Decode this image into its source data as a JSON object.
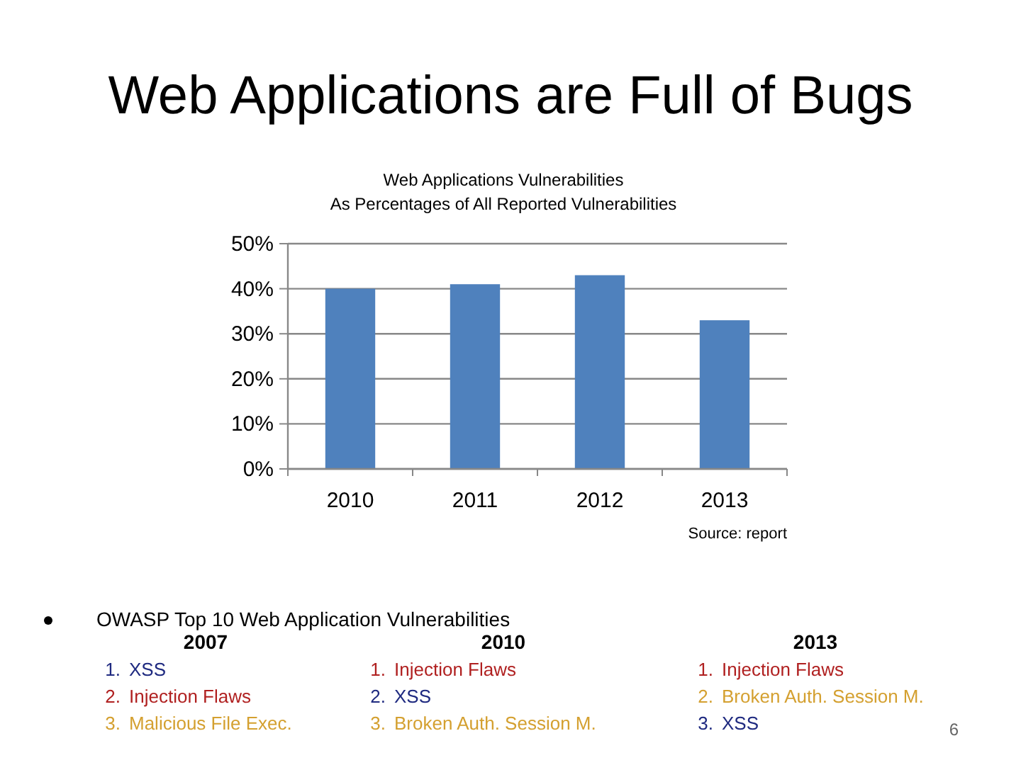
{
  "chart_data": {
    "type": "bar",
    "title": "Web Applications are Full of Bugs",
    "subtitle": "Web Applications Vulnerabilities\nAs Percentages of All Reported Vulnerabilities",
    "categories": [
      "2010",
      "2011",
      "2012",
      "2013"
    ],
    "values": [
      40,
      41,
      43,
      33
    ],
    "color": "#4f81bd",
    "ylim": [
      0,
      50
    ],
    "yticks": [
      {
        "value": 0,
        "label": "0%"
      },
      {
        "value": 10,
        "label": "10%"
      },
      {
        "value": 20,
        "label": "20%"
      },
      {
        "value": 30,
        "label": "30%"
      },
      {
        "value": 40,
        "label": "40%"
      },
      {
        "value": 50,
        "label": "50%"
      }
    ],
    "grid": "y",
    "annotations": [
      "Source: report",
      "OWASP Top 10 Web Application Vulnerabilities",
      "2007",
      "1.",
      "XSS",
      "2.",
      "Injection Flaws",
      "3.",
      "Malicious File Exec.",
      "2010",
      "1.",
      "Injection Flaws",
      "2.",
      "XSS",
      "3.",
      "Broken Auth. Session M.",
      "2013",
      "1.",
      "Injection Flaws",
      "2.",
      "Broken Auth. Session M.",
      "3.",
      "XSS",
      "6"
    ]
  }
}
